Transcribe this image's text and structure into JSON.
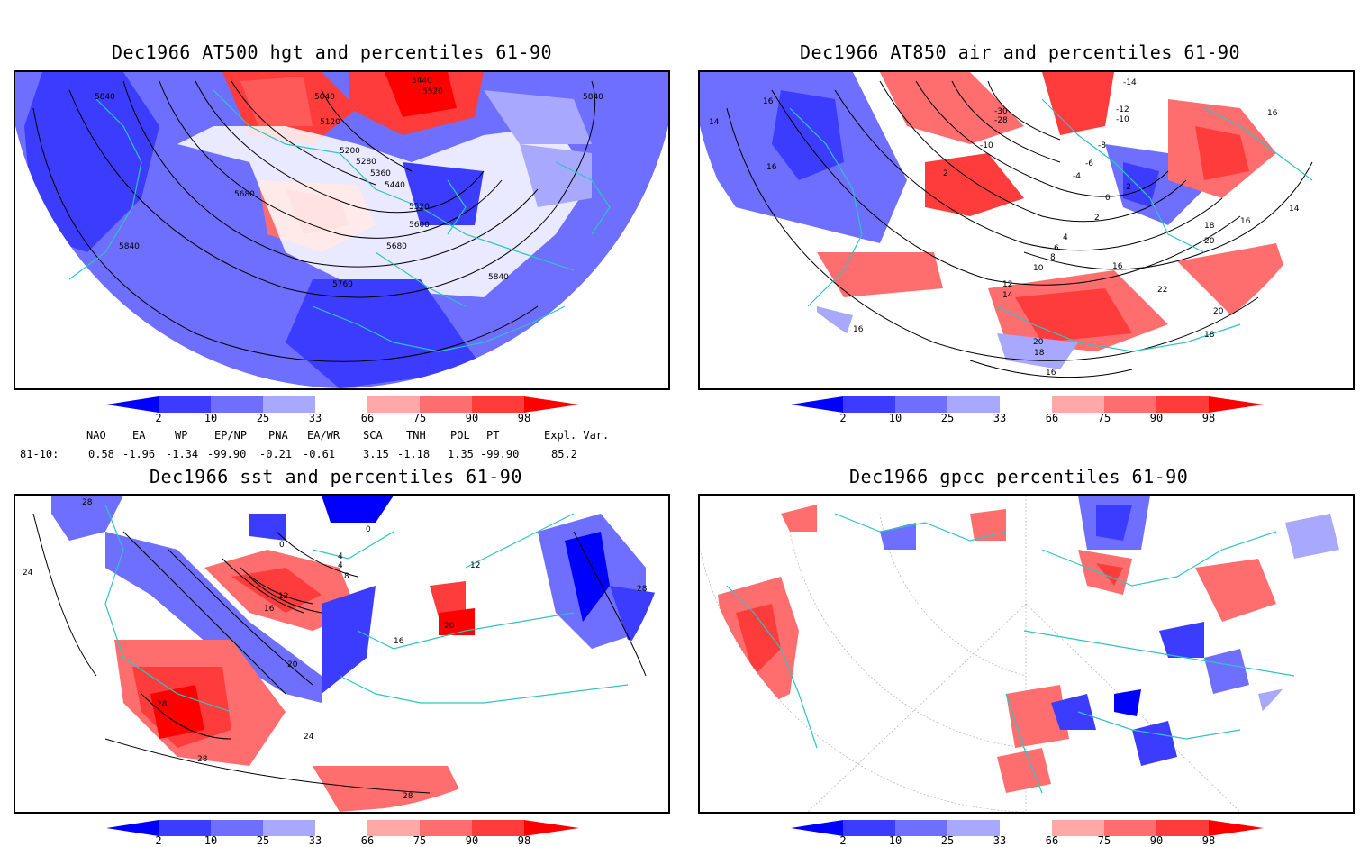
{
  "panels": {
    "p1": {
      "title": "Dec1966 AT500 hgt and percentiles 61-90",
      "contour_labels": [
        "5840",
        "5040",
        "5440",
        "5520",
        "5120",
        "5200",
        "5280",
        "5360",
        "5440",
        "5680",
        "5520",
        "5600",
        "5680",
        "5840",
        "5760",
        "5840",
        "5840"
      ]
    },
    "p2": {
      "title": "Dec1966 AT850 air and percentiles 61-90",
      "contour_labels": [
        "16",
        "16",
        "14",
        "16",
        "2",
        "-14",
        "-12",
        "-10",
        "-30",
        "-28",
        "-10",
        "-8",
        "-6",
        "-4",
        "-2",
        "2",
        "0",
        "4",
        "6",
        "8",
        "10",
        "12",
        "14",
        "16",
        "18",
        "20",
        "22",
        "20",
        "20",
        "18",
        "16",
        "16",
        "14",
        "16",
        "18"
      ]
    },
    "p3": {
      "title": "Dec1966 sst and percentiles 61-90",
      "contour_labels": [
        "28",
        "24",
        "0",
        "0",
        "4",
        "4",
        "8",
        "12",
        "16",
        "20",
        "24",
        "28",
        "28",
        "28",
        "12",
        "20",
        "16",
        "28"
      ]
    },
    "p4": {
      "title": "Dec1966 gpcc percentiles 61-90",
      "contour_labels": []
    }
  },
  "colorbar": {
    "ticks": [
      "2",
      "10",
      "25",
      "33",
      "66",
      "75",
      "90",
      "98"
    ],
    "colors": {
      "c1": "#0000ff",
      "c2": "#3c3cff",
      "c3": "#6e6eff",
      "c4": "#a8a8ff",
      "c5": "#ffa8a8",
      "c6": "#ff6e6e",
      "c7": "#ff3c3c",
      "c8": "#ff0000"
    }
  },
  "indices": {
    "headers": [
      "NAO",
      "EA",
      "WP",
      "EP/NP",
      "PNA",
      "EA/WR",
      "SCA",
      "TNH",
      "POL",
      "PT",
      "Expl. Var."
    ],
    "row_label": "81-10:",
    "values": [
      "0.58",
      "-1.96",
      "-1.34",
      "-99.90",
      "-0.21",
      "-0.61",
      "3.15",
      "-1.18",
      "1.35",
      "-99.90",
      "85.2"
    ]
  },
  "map_colors": {
    "coast": "#2ec4c4",
    "grid": "#999999",
    "contour": "#000000"
  }
}
